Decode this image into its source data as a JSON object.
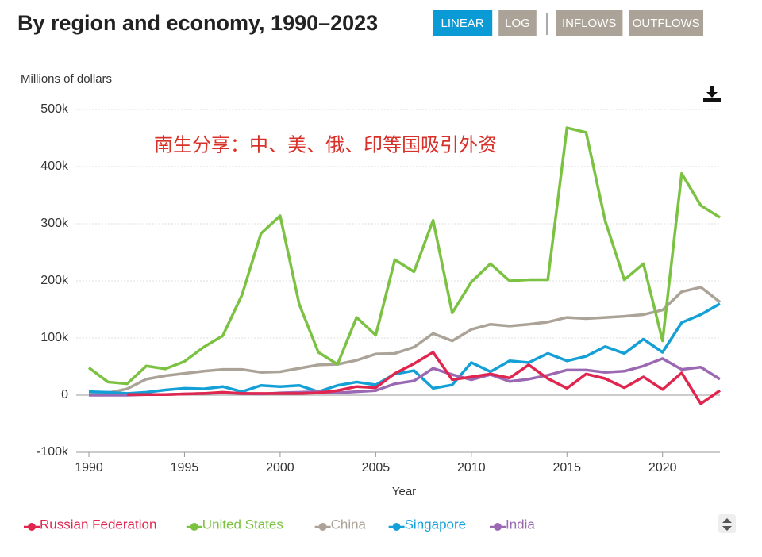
{
  "controls": {
    "scale_buttons": [
      "LINEAR",
      "LOG"
    ],
    "flow_buttons": [
      "INFLOWS",
      "OUTFLOWS"
    ]
  },
  "chart_data": {
    "type": "line",
    "title": "By region and economy, 1990–2023",
    "y_label": "Millions of dollars",
    "x_label": "Year",
    "annotation": "南生分享：中、美、俄、印等国吸引外资",
    "x": [
      1990,
      1991,
      1992,
      1993,
      1994,
      1995,
      1996,
      1997,
      1998,
      1999,
      2000,
      2001,
      2002,
      2003,
      2004,
      2005,
      2006,
      2007,
      2008,
      2009,
      2010,
      2011,
      2012,
      2013,
      2014,
      2015,
      2016,
      2017,
      2018,
      2019,
      2020,
      2021,
      2022,
      2023
    ],
    "xlim": [
      1990,
      2023
    ],
    "xticks": [
      1990,
      1995,
      2000,
      2005,
      2010,
      2015,
      2020
    ],
    "ylim": [
      -100000,
      500000
    ],
    "yticks": [
      {
        "value": -100000,
        "label": "-100k"
      },
      0,
      {
        "value": 100000,
        "label": "100k"
      },
      {
        "value": 200000,
        "label": "200k"
      },
      {
        "value": 300000,
        "label": "300k"
      },
      {
        "value": 400000,
        "label": "400k"
      },
      {
        "value": 500000,
        "label": "500k"
      }
    ],
    "grid": true,
    "series": [
      {
        "name": "Russian Federation",
        "color": "#e0264f",
        "values": [
          null,
          null,
          1000,
          1000,
          1000,
          2000,
          3000,
          5000,
          3000,
          3000,
          3000,
          3000,
          4000,
          8000,
          15000,
          13000,
          38000,
          55000,
          75000,
          27000,
          32000,
          37000,
          30000,
          53000,
          29000,
          12000,
          37000,
          29000,
          13000,
          32000,
          10000,
          39000,
          -15000,
          8000
        ]
      },
      {
        "name": "United States",
        "color": "#7cc242",
        "values": [
          48000,
          23000,
          20000,
          51000,
          46000,
          59000,
          84000,
          104000,
          175000,
          283000,
          314000,
          159000,
          75000,
          54000,
          136000,
          105000,
          237000,
          216000,
          306000,
          144000,
          198000,
          230000,
          200000,
          202000,
          202000,
          468000,
          460000,
          305000,
          202000,
          230000,
          95000,
          388000,
          332000,
          311000
        ]
      },
      {
        "name": "China",
        "color": "#aba397",
        "values": [
          3000,
          4000,
          11000,
          28000,
          34000,
          38000,
          42000,
          45000,
          45000,
          40000,
          41000,
          47000,
          53000,
          54000,
          61000,
          72000,
          73000,
          84000,
          108000,
          95000,
          115000,
          124000,
          121000,
          124000,
          128000,
          136000,
          134000,
          136000,
          138000,
          141000,
          149000,
          181000,
          189000,
          163000
        ]
      },
      {
        "name": "Singapore",
        "color": "#14a0d6",
        "values": [
          6000,
          5000,
          3000,
          5000,
          9000,
          12000,
          11000,
          15000,
          6000,
          17000,
          15000,
          17000,
          6000,
          17000,
          23000,
          18000,
          37000,
          43000,
          12000,
          18000,
          57000,
          41000,
          60000,
          57000,
          73000,
          60000,
          68000,
          85000,
          73000,
          98000,
          75000,
          127000,
          141000,
          160000
        ]
      },
      {
        "name": "India",
        "color": "#9b68b3",
        "values": [
          0,
          0,
          0,
          1000,
          1000,
          2000,
          3000,
          4000,
          3000,
          2000,
          4000,
          5000,
          6000,
          4000,
          6000,
          8000,
          20000,
          25000,
          47000,
          36000,
          27000,
          36000,
          24000,
          28000,
          35000,
          44000,
          44000,
          40000,
          42000,
          51000,
          64000,
          45000,
          49000,
          28000
        ]
      }
    ]
  }
}
